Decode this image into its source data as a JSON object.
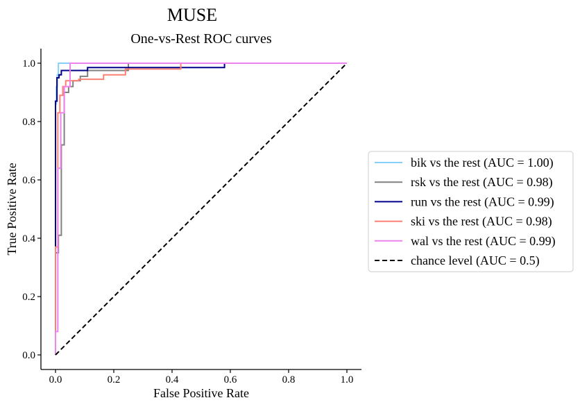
{
  "figure": {
    "suptitle": "MUSE"
  },
  "chart_data": {
    "type": "line",
    "title": "One-vs-Rest ROC curves",
    "xlabel": "False Positive Rate",
    "ylabel": "True Positive Rate",
    "xlim": [
      -0.05,
      1.05
    ],
    "ylim": [
      -0.05,
      1.05
    ],
    "xticks": [
      0.0,
      0.2,
      0.4,
      0.6,
      0.8,
      1.0
    ],
    "xtick_labels": [
      "0.0",
      "0.2",
      "0.4",
      "0.6",
      "0.8",
      "1.0"
    ],
    "yticks": [
      0.0,
      0.2,
      0.4,
      0.6,
      0.8,
      1.0
    ],
    "ytick_labels": [
      "0.0",
      "0.2",
      "0.4",
      "0.6",
      "0.8",
      "1.0"
    ],
    "grid": false,
    "legend_position": "outside-right",
    "series": [
      {
        "name": "bik vs the rest (AUC = 1.00)",
        "color": "#87cefa",
        "dash": "solid",
        "x": [
          0.0,
          0.0,
          0.003,
          0.003,
          0.006,
          0.006,
          0.01,
          0.01,
          1.0
        ],
        "y": [
          0.0,
          0.86,
          0.86,
          0.92,
          0.92,
          0.96,
          0.96,
          1.0,
          1.0
        ]
      },
      {
        "name": "rsk vs the rest (AUC = 0.98)",
        "color": "#808080",
        "dash": "solid",
        "x": [
          0.0,
          0.0,
          0.01,
          0.01,
          0.02,
          0.02,
          0.03,
          0.03,
          0.045,
          0.045,
          0.06,
          0.06,
          0.085,
          0.085,
          0.11,
          0.11,
          0.25,
          0.25,
          1.0
        ],
        "y": [
          0.0,
          0.35,
          0.35,
          0.41,
          0.41,
          0.72,
          0.72,
          0.9,
          0.9,
          0.92,
          0.92,
          0.94,
          0.94,
          0.955,
          0.955,
          0.975,
          0.975,
          1.0,
          1.0
        ]
      },
      {
        "name": "run vs the rest (AUC = 0.99)",
        "color": "#00008b",
        "dash": "solid",
        "x": [
          0.0,
          0.0,
          0.005,
          0.005,
          0.012,
          0.012,
          0.02,
          0.02,
          0.11,
          0.11,
          0.58,
          0.58,
          1.0
        ],
        "y": [
          0.0,
          0.87,
          0.87,
          0.95,
          0.95,
          0.96,
          0.96,
          0.975,
          0.975,
          0.985,
          0.985,
          1.0,
          1.0
        ]
      },
      {
        "name": "ski vs the rest (AUC = 0.98)",
        "color": "#fa8072",
        "dash": "solid",
        "x": [
          0.0,
          0.0,
          0.008,
          0.008,
          0.015,
          0.015,
          0.025,
          0.025,
          0.035,
          0.035,
          0.08,
          0.08,
          0.165,
          0.165,
          0.24,
          0.24,
          0.43,
          0.43,
          1.0
        ],
        "y": [
          0.0,
          0.37,
          0.37,
          0.83,
          0.83,
          0.89,
          0.89,
          0.92,
          0.92,
          0.94,
          0.94,
          0.945,
          0.945,
          0.96,
          0.96,
          0.98,
          0.98,
          1.0,
          1.0
        ]
      },
      {
        "name": "wal vs the rest (AUC = 0.99)",
        "color": "#ee82ee",
        "dash": "solid",
        "x": [
          0.0,
          0.0,
          0.008,
          0.008,
          0.018,
          0.018,
          0.03,
          0.03,
          0.05,
          0.05,
          1.0
        ],
        "y": [
          0.0,
          0.08,
          0.08,
          0.64,
          0.64,
          0.83,
          0.83,
          0.92,
          0.92,
          1.0,
          1.0
        ]
      },
      {
        "name": "chance level (AUC = 0.5)",
        "color": "#000000",
        "dash": "dashed",
        "x": [
          0.0,
          1.0
        ],
        "y": [
          0.0,
          1.0
        ]
      }
    ]
  }
}
